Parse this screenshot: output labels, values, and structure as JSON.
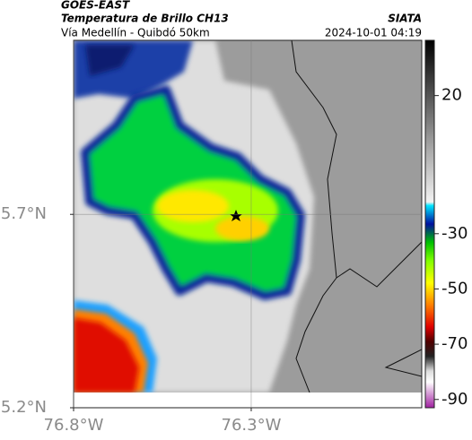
{
  "header": {
    "satellite": "GOES-EAST",
    "product": "Temperatura de Brillo CH13",
    "region": "Vía Medellín - Quibdó 50km",
    "source": "SIATA",
    "datetime": "2024-10-01 04:19"
  },
  "map": {
    "lon_range": [
      -76.8,
      -75.82
    ],
    "lat_range": [
      5.2,
      6.15
    ],
    "lon_ticks": [
      {
        "value": -76.8,
        "label": "76.8°W"
      },
      {
        "value": -76.3,
        "label": "76.3°W"
      }
    ],
    "lat_ticks": [
      {
        "value": 5.7,
        "label": "5.7°N"
      },
      {
        "value": 5.2,
        "label": "5.2°N"
      }
    ]
  },
  "colorbar": {
    "range": [
      40,
      -93
    ],
    "ticks": [
      20,
      -30,
      -50,
      -70,
      -90
    ]
  }
}
